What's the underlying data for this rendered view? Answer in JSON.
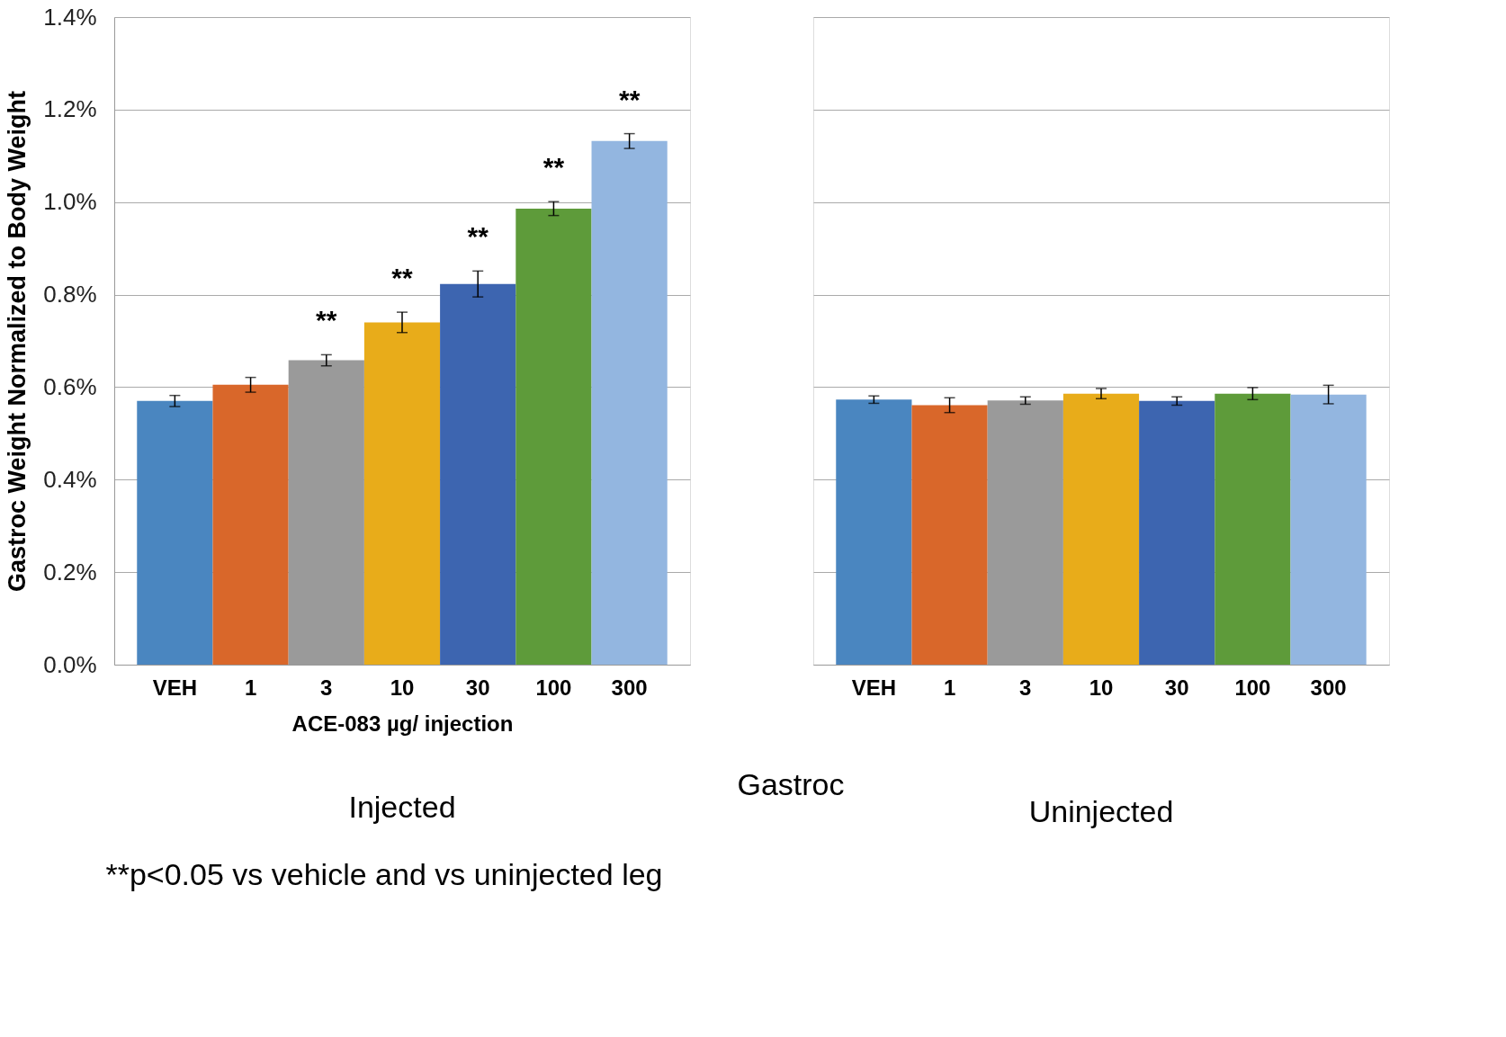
{
  "chart_data": [
    {
      "type": "bar",
      "ylabel": "Gastroc Weight Normalized to Body Weight",
      "xlabel": "ACE-083 µg/ injection",
      "categories": [
        "VEH",
        "1",
        "3",
        "10",
        "30",
        "100",
        "300"
      ],
      "values": [
        0.57,
        0.605,
        0.658,
        0.74,
        0.823,
        0.986,
        1.132
      ],
      "errors": [
        0.012,
        0.016,
        0.012,
        0.022,
        0.028,
        0.015,
        0.016
      ],
      "colors": [
        "#4a86c0",
        "#d9672a",
        "#9a9a9a",
        "#e8ac1a",
        "#3d65b0",
        "#5e9b3a",
        "#93b6e0"
      ],
      "ylim": [
        0,
        1.4
      ],
      "yticks": [
        {
          "value": 0,
          "label": "0.0%"
        },
        {
          "value": 0.2,
          "label": "0.2%"
        },
        {
          "value": 0.4,
          "label": "0.4%"
        },
        {
          "value": 0.6,
          "label": "0.6%"
        },
        {
          "value": 0.8,
          "label": "0.8%"
        },
        {
          "value": 1.0,
          "label": "1.0%"
        },
        {
          "value": 1.2,
          "label": "1.2%"
        },
        {
          "value": 1.4,
          "label": "1.4%"
        }
      ],
      "grid": "y",
      "annotations": [
        {
          "text": "**",
          "x": "3",
          "y": 0.67
        },
        {
          "text": "**",
          "x": "10",
          "y": 0.762
        },
        {
          "text": "**",
          "x": "30",
          "y": 0.851
        },
        {
          "text": "**",
          "x": "100",
          "y": 1.001
        },
        {
          "text": "**",
          "x": "300",
          "y": 1.148
        },
        "Injected",
        "**p<0.05 vs vehicle and vs uninjected leg"
      ]
    },
    {
      "type": "bar",
      "categories": [
        "VEH",
        "1",
        "3",
        "10",
        "30",
        "100",
        "300"
      ],
      "values": [
        0.573,
        0.561,
        0.571,
        0.586,
        0.57,
        0.586,
        0.584
      ],
      "errors": [
        0.008,
        0.016,
        0.008,
        0.011,
        0.009,
        0.013,
        0.02
      ],
      "colors": [
        "#4a86c0",
        "#d9672a",
        "#9a9a9a",
        "#e8ac1a",
        "#3d65b0",
        "#5e9b3a",
        "#93b6e0"
      ],
      "ylim": [
        0,
        1.4
      ],
      "yticks": [
        0,
        0.2,
        0.4,
        0.6,
        0.8,
        1.0,
        1.2,
        1.4
      ],
      "grid": "y",
      "tick_labels": "x",
      "annotations": [
        "Gastroc",
        "Uninjected"
      ]
    }
  ]
}
